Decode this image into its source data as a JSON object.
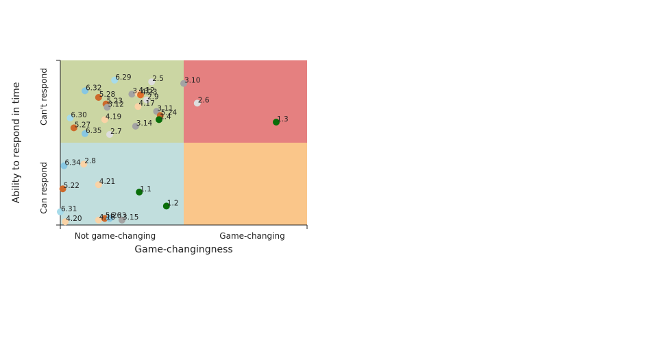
{
  "chart_data": {
    "type": "scatter",
    "xlabel": "Game-changingness",
    "ylabel": "Ability to respond in time",
    "xlim": [
      0,
      2
    ],
    "ylim": [
      0,
      2
    ],
    "x_tick_labels": [
      "Not game-changing",
      "Game-changing"
    ],
    "y_tick_labels": [
      "Can respond",
      "Can't respond"
    ],
    "quadrants": [
      {
        "x": [
          0,
          1
        ],
        "y": [
          1,
          2
        ],
        "color": "#cbd6a3"
      },
      {
        "x": [
          1,
          2
        ],
        "y": [
          1,
          2
        ],
        "color": "#e58080"
      },
      {
        "x": [
          0,
          1
        ],
        "y": [
          0,
          1
        ],
        "color": "#c1dedd"
      },
      {
        "x": [
          1,
          2
        ],
        "y": [
          0,
          1
        ],
        "color": "#fac68a"
      }
    ],
    "grid": false,
    "legend": "none",
    "points": [
      {
        "label": "6.29",
        "x": 0.44,
        "y": 1.76,
        "color": "#a6dbea"
      },
      {
        "label": "2.5",
        "x": 0.74,
        "y": 1.74,
        "color": "#dddddd"
      },
      {
        "label": "3.10",
        "x": 1.0,
        "y": 1.72,
        "color": "#a3a3a3"
      },
      {
        "label": "6.32",
        "x": 0.2,
        "y": 1.63,
        "color": "#87c7e2"
      },
      {
        "label": "3.13",
        "x": 0.58,
        "y": 1.59,
        "color": "#a3a3a3"
      },
      {
        "label": "4.12",
        "x": 0.63,
        "y": 1.6,
        "color": "#fad3a6"
      },
      {
        "label": "4.23",
        "x": 0.65,
        "y": 1.58,
        "color": "#e06e2a"
      },
      {
        "label": "5.28",
        "x": 0.31,
        "y": 1.55,
        "color": "#cd6a2c"
      },
      {
        "label": "5.23",
        "x": 0.37,
        "y": 1.47,
        "color": "#cd6a2c"
      },
      {
        "label": "3.12",
        "x": 0.38,
        "y": 1.43,
        "color": "#a3a3a3"
      },
      {
        "label": "2.9",
        "x": 0.7,
        "y": 1.52,
        "color": "#dddddd"
      },
      {
        "label": "2.6",
        "x": 1.11,
        "y": 1.48,
        "color": "#dddddd"
      },
      {
        "label": "4.17",
        "x": 0.63,
        "y": 1.44,
        "color": "#fad3a6"
      },
      {
        "label": "3.11",
        "x": 0.78,
        "y": 1.38,
        "color": "#a3a3a3"
      },
      {
        "label": "5.24",
        "x": 0.81,
        "y": 1.33,
        "color": "#cd6a2c"
      },
      {
        "label": "1.4",
        "x": 0.8,
        "y": 1.28,
        "color": "#0a6e0a"
      },
      {
        "label": "1.3",
        "x": 1.75,
        "y": 1.25,
        "color": "#0a6e0a"
      },
      {
        "label": "6.30",
        "x": 0.08,
        "y": 1.3,
        "color": "#a6dbea"
      },
      {
        "label": "4.19",
        "x": 0.36,
        "y": 1.28,
        "color": "#fad3a6"
      },
      {
        "label": "5.27",
        "x": 0.11,
        "y": 1.18,
        "color": "#cd6a2c"
      },
      {
        "label": "3.14",
        "x": 0.61,
        "y": 1.2,
        "color": "#a3a3a3"
      },
      {
        "label": "6.35",
        "x": 0.2,
        "y": 1.11,
        "color": "#87c7e2"
      },
      {
        "label": "2.7",
        "x": 0.4,
        "y": 1.1,
        "color": "#dddddd"
      },
      {
        "label": "2.8",
        "x": 0.19,
        "y": 0.74,
        "color": "#fad3a6"
      },
      {
        "label": "6.34",
        "x": 0.03,
        "y": 0.72,
        "color": "#87c7e2"
      },
      {
        "label": "4.21",
        "x": 0.31,
        "y": 0.49,
        "color": "#fad3a6"
      },
      {
        "label": "5.22",
        "x": 0.02,
        "y": 0.44,
        "color": "#cd6a2c"
      },
      {
        "label": "1.1",
        "x": 0.64,
        "y": 0.4,
        "color": "#0a6e0a"
      },
      {
        "label": "1.2",
        "x": 0.86,
        "y": 0.23,
        "color": "#0a6e0a"
      },
      {
        "label": "6.31",
        "x": 0.0,
        "y": 0.16,
        "color": "#a6dbea"
      },
      {
        "label": "4.20",
        "x": 0.04,
        "y": 0.04,
        "color": "#fad3a6"
      },
      {
        "label": "4.18",
        "x": 0.31,
        "y": 0.06,
        "color": "#fad3a6"
      },
      {
        "label": "5.26",
        "x": 0.36,
        "y": 0.08,
        "color": "#cd6a2c"
      },
      {
        "label": "6.33",
        "x": 0.4,
        "y": 0.08,
        "color": "#87c7e2"
      },
      {
        "label": "3.15",
        "x": 0.5,
        "y": 0.06,
        "color": "#a3a3a3"
      }
    ]
  }
}
